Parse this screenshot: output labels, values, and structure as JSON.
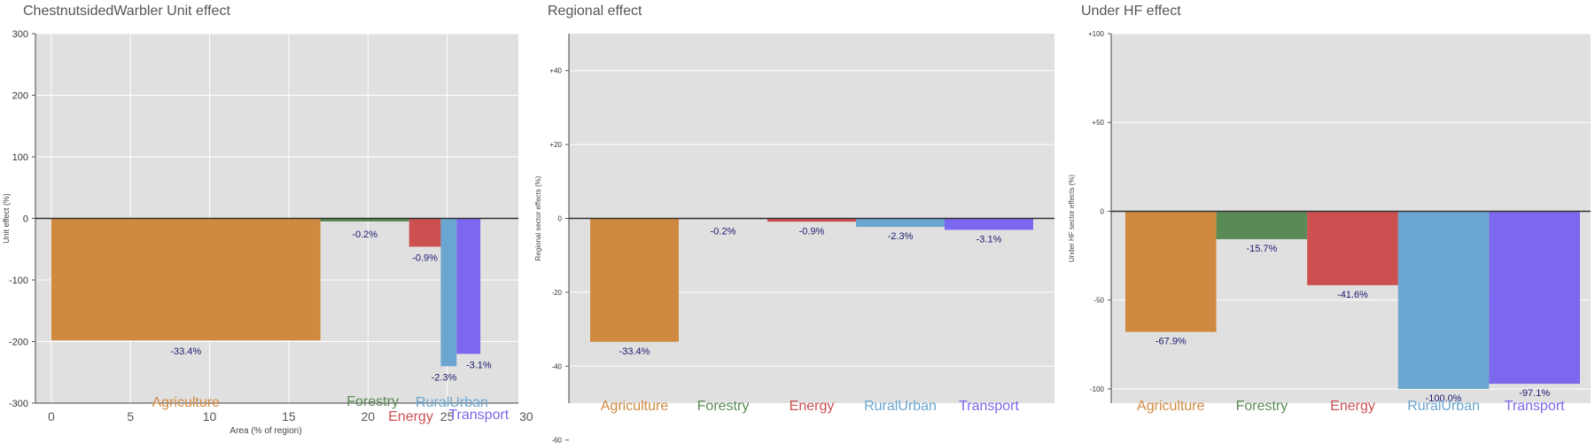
{
  "sectors": {
    "names": [
      "Agriculture",
      "Forestry",
      "Energy",
      "RuralUrban",
      "Transport"
    ],
    "colors": [
      "#d08a40",
      "#5a8a55",
      "#cc5050",
      "#6aa6d0",
      "#7b68ee"
    ],
    "label_color": "#1a1a6e",
    "plot_bg": "#e0e0e0",
    "grid_color": "#ffffff"
  },
  "chart_data": [
    {
      "id": "unit",
      "type": "bar",
      "title": "ChestnutsidedWarbler Unit effect",
      "xlabel": "Area (% of region)",
      "ylabel": "Unit effect (%)",
      "xlim": [
        -1,
        29.5
      ],
      "ylim": [
        -300,
        300
      ],
      "xticks": [
        0,
        5,
        10,
        15,
        20,
        25,
        30
      ],
      "xtick_labels": [
        "0",
        "5",
        "10",
        "15",
        "20",
        "25",
        "30"
      ],
      "yticks": [
        300,
        200,
        100,
        0,
        -100,
        -200,
        -300
      ],
      "ytick_labels": [
        "300",
        "200",
        "100",
        "0",
        "-100",
        "-200",
        "-300"
      ],
      "bars": [
        {
          "category": "Agriculture",
          "x_start": 0,
          "x_end": 17,
          "value": -198,
          "label": "-33.4%"
        },
        {
          "category": "Forestry",
          "x_start": 17,
          "x_end": 22.6,
          "value": -5,
          "label": "-0.2%"
        },
        {
          "category": "Energy",
          "x_start": 22.6,
          "x_end": 24.6,
          "value": -46,
          "label": "-0.9%"
        },
        {
          "category": "RuralUrban",
          "x_start": 24.6,
          "x_end": 25.6,
          "value": -240,
          "label": "-2.3%"
        },
        {
          "category": "Transport",
          "x_start": 25.6,
          "x_end": 27.1,
          "value": -220,
          "label": "-3.1%"
        }
      ],
      "category_labels": [
        "Agriculture",
        "Forestry",
        "Energy",
        "RuralUrban",
        "Transport"
      ]
    },
    {
      "id": "regional",
      "type": "bar",
      "title": "Regional effect",
      "xlabel": "",
      "ylabel": "Regional sector effects (%)",
      "ylim": [
        -50,
        50
      ],
      "yticks": [
        40,
        20,
        0,
        -20,
        -40,
        -60
      ],
      "ytick_labels": [
        "+40",
        "+20",
        "0",
        "-20",
        "-40",
        "-60"
      ],
      "categories": [
        "Agriculture",
        "Forestry",
        "Energy",
        "RuralUrban",
        "Transport"
      ],
      "values": [
        -33.4,
        -0.2,
        -0.9,
        -2.3,
        -3.1
      ],
      "labels": [
        "-33.4%",
        "-0.2%",
        "-0.9%",
        "-2.3%",
        "-3.1%"
      ]
    },
    {
      "id": "underhf",
      "type": "bar",
      "title": "Under HF effect",
      "xlabel": "",
      "ylabel": "Under HF sector effects (%)",
      "ylim": [
        -108,
        100
      ],
      "yticks": [
        100,
        50,
        0,
        -50,
        -100
      ],
      "ytick_labels": [
        "+100",
        "+50",
        "0",
        "-50",
        "-100"
      ],
      "categories": [
        "Agriculture",
        "Forestry",
        "Energy",
        "RuralUrban",
        "Transport"
      ],
      "values": [
        -67.9,
        -15.7,
        -41.6,
        -100.0,
        -97.1
      ],
      "labels": [
        "-67.9%",
        "-15.7%",
        "-41.6%",
        "-100.0%",
        "-97.1%"
      ]
    }
  ]
}
